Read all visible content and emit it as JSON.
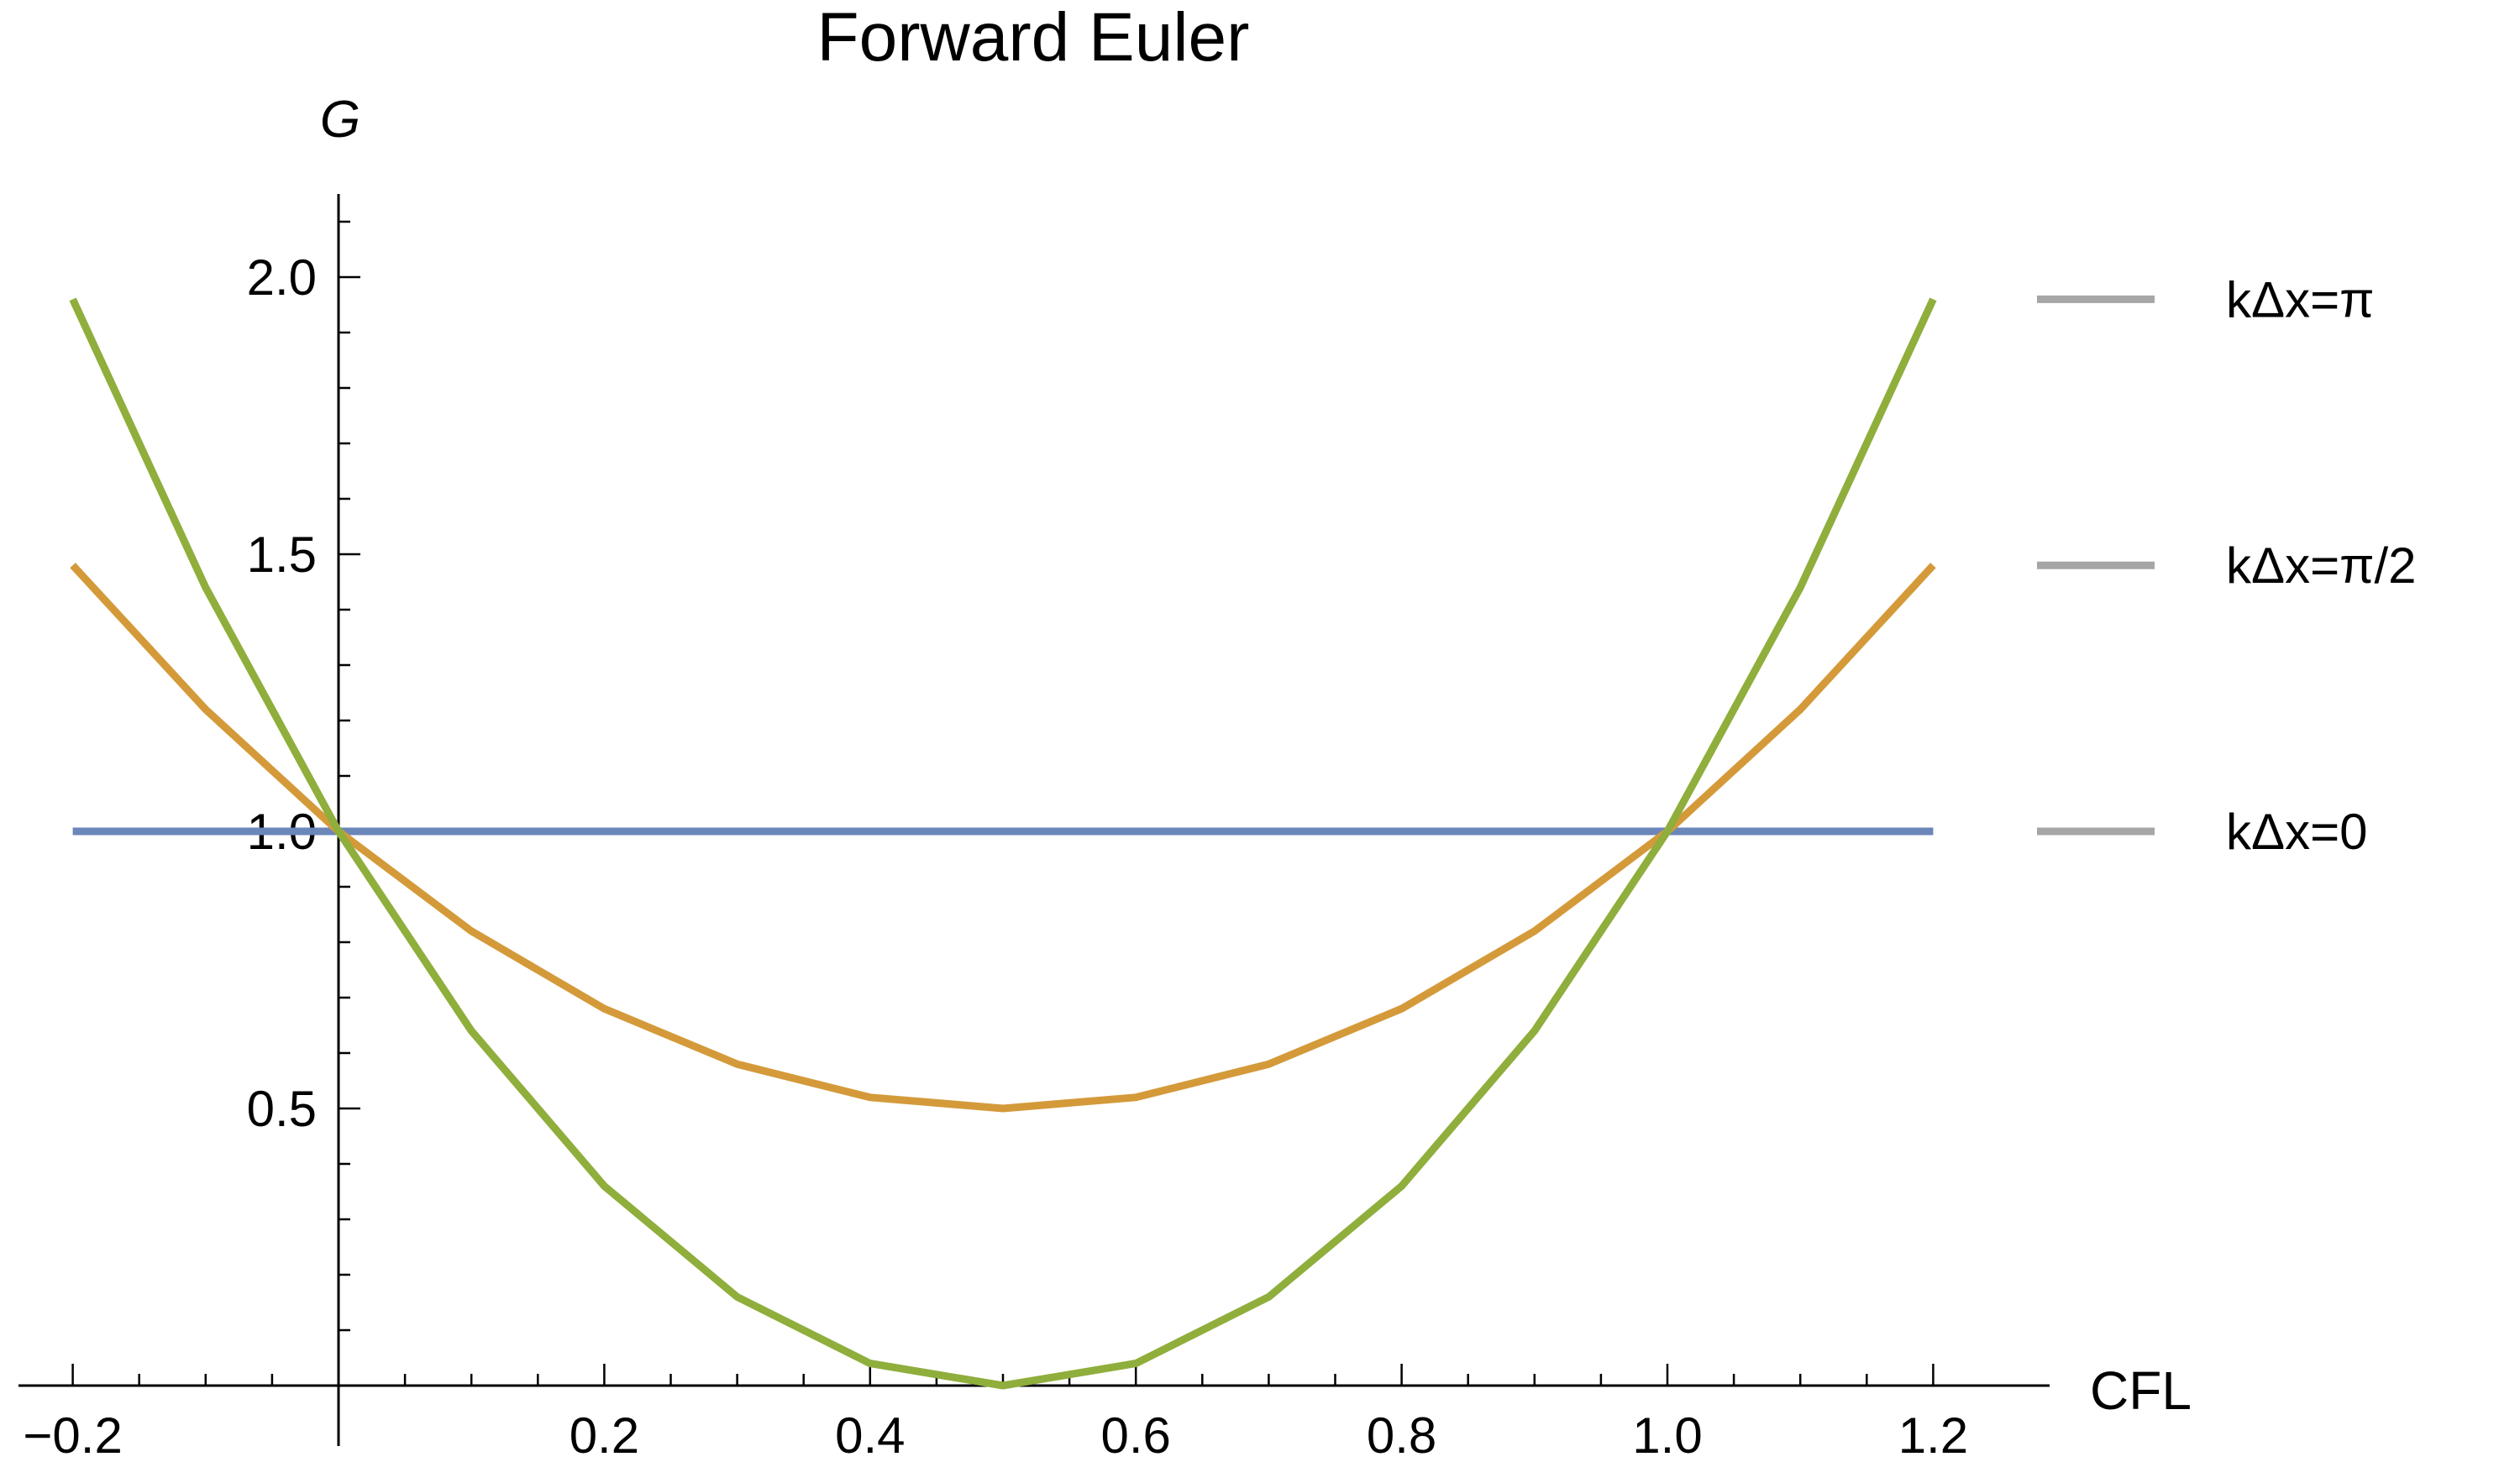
{
  "chart_data": {
    "type": "line",
    "title": "Forward Euler",
    "xlabel": "CFL",
    "ylabel": "G",
    "xlim": [
      -0.2,
      1.2
    ],
    "ylim": [
      0.0,
      2.15
    ],
    "x_ticks": [
      {
        "value": -0.2,
        "label": "−0.2"
      },
      {
        "value": 0.2,
        "label": "0.2"
      },
      {
        "value": 0.4,
        "label": "0.4"
      },
      {
        "value": 0.6,
        "label": "0.6"
      },
      {
        "value": 0.8,
        "label": "0.8"
      },
      {
        "value": 1.0,
        "label": "1.0"
      },
      {
        "value": 1.2,
        "label": "1.2"
      }
    ],
    "y_ticks": [
      {
        "value": 0.5,
        "label": "0.5"
      },
      {
        "value": 1.0,
        "label": "1.0"
      },
      {
        "value": 1.5,
        "label": "1.5"
      },
      {
        "value": 2.0,
        "label": "2.0"
      }
    ],
    "grid": false,
    "legend_position": "right",
    "x": [
      -0.2,
      -0.1,
      0.0,
      0.1,
      0.2,
      0.3,
      0.4,
      0.5,
      0.6,
      0.7,
      0.8,
      0.9,
      1.0,
      1.1,
      1.2
    ],
    "series": [
      {
        "name": "kΔx=0",
        "color": "#6b86b8",
        "values": [
          1.0,
          1.0,
          1.0,
          1.0,
          1.0,
          1.0,
          1.0,
          1.0,
          1.0,
          1.0,
          1.0,
          1.0,
          1.0,
          1.0,
          1.0
        ]
      },
      {
        "name": "kΔx=π/2",
        "color": "#d49a3a",
        "values": [
          1.48,
          1.22,
          1.0,
          0.82,
          0.68,
          0.58,
          0.52,
          0.5,
          0.52,
          0.58,
          0.68,
          0.82,
          1.0,
          1.22,
          1.48
        ]
      },
      {
        "name": "kΔx=π",
        "color": "#8fae3c",
        "values": [
          1.96,
          1.44,
          1.0,
          0.64,
          0.36,
          0.16,
          0.04,
          0.0,
          0.04,
          0.16,
          0.36,
          0.64,
          1.0,
          1.44,
          1.96
        ]
      }
    ],
    "legend": [
      {
        "label": "kΔx=π",
        "series": "kΔx=π"
      },
      {
        "label": "kΔx=π/2",
        "series": "kΔx=π/2"
      },
      {
        "label": "kΔx=0",
        "series": "kΔx=0"
      }
    ],
    "legend_swatch_color": "#a6a6a6"
  }
}
